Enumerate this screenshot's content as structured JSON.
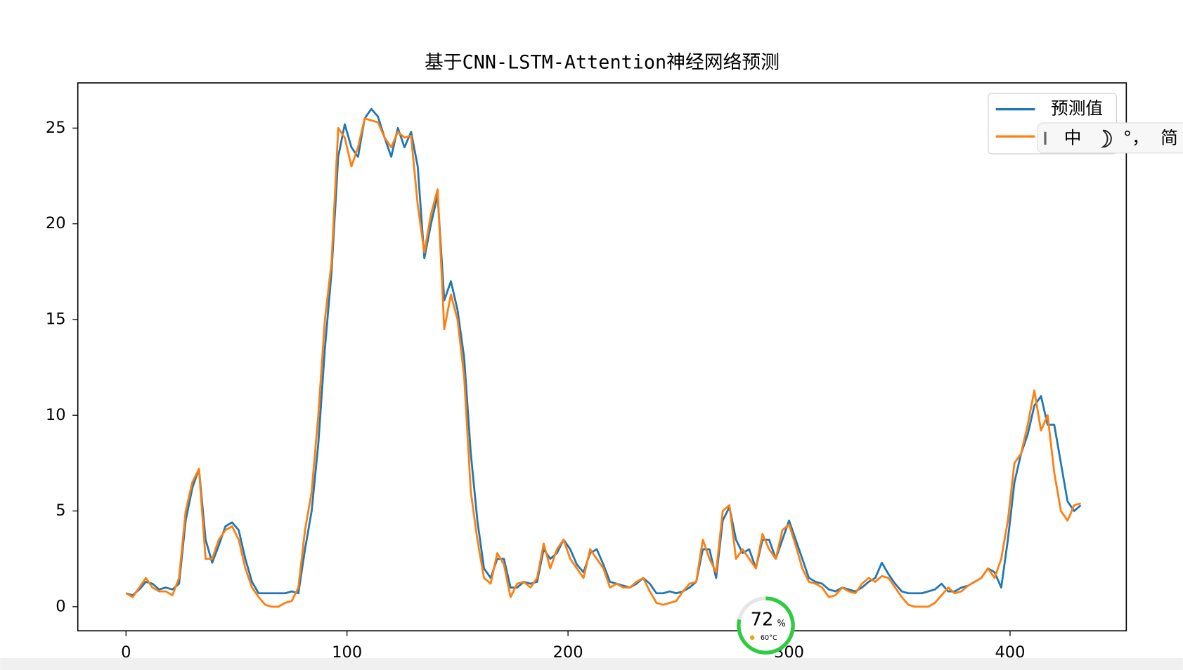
{
  "chart_data": {
    "type": "line",
    "title": "基于CNN-LSTM-Attention神经网络预测",
    "x": [
      0,
      3,
      6,
      9,
      12,
      15,
      18,
      21,
      24,
      27,
      30,
      33,
      36,
      39,
      42,
      45,
      48,
      51,
      54,
      57,
      60,
      63,
      66,
      69,
      72,
      75,
      78,
      81,
      84,
      87,
      90,
      93,
      96,
      99,
      102,
      105,
      108,
      111,
      114,
      117,
      120,
      123,
      126,
      129,
      132,
      135,
      138,
      141,
      144,
      147,
      150,
      153,
      156,
      159,
      162,
      165,
      168,
      171,
      174,
      177,
      180,
      183,
      186,
      189,
      192,
      195,
      198,
      201,
      204,
      207,
      210,
      213,
      216,
      219,
      222,
      225,
      228,
      231,
      234,
      237,
      240,
      243,
      246,
      249,
      252,
      255,
      258,
      261,
      264,
      267,
      270,
      273,
      276,
      279,
      282,
      285,
      288,
      291,
      294,
      297,
      300,
      303,
      306,
      309,
      312,
      315,
      318,
      321,
      324,
      327,
      330,
      333,
      336,
      339,
      342,
      345,
      348,
      351,
      354,
      357,
      360,
      363,
      366,
      369,
      372,
      375,
      378,
      381,
      384,
      387,
      390,
      393,
      396,
      399,
      402,
      405,
      408,
      411,
      414,
      417,
      420,
      423,
      426,
      429,
      432
    ],
    "series": [
      {
        "name": "预测值",
        "color": "#1f77b4",
        "values": [
          0.7,
          0.6,
          0.9,
          1.3,
          1.2,
          0.9,
          1.0,
          0.9,
          1.2,
          4.5,
          6.2,
          7.2,
          3.5,
          2.3,
          3.2,
          4.2,
          4.4,
          4.0,
          2.5,
          1.3,
          0.7,
          0.7,
          0.7,
          0.7,
          0.7,
          0.8,
          0.7,
          3.0,
          5.0,
          8.5,
          13.5,
          17.5,
          23.5,
          25.2,
          24.0,
          23.5,
          25.5,
          26.0,
          25.6,
          24.5,
          23.5,
          25.0,
          24.0,
          24.8,
          23.0,
          18.2,
          20.0,
          21.5,
          16.0,
          17.0,
          15.5,
          13.0,
          8.0,
          4.5,
          2.0,
          1.5,
          2.5,
          2.5,
          1.0,
          1.0,
          1.3,
          1.2,
          1.3,
          3.0,
          2.5,
          2.8,
          3.5,
          3.0,
          2.2,
          1.8,
          2.8,
          3.0,
          2.2,
          1.3,
          1.2,
          1.1,
          1.0,
          1.2,
          1.5,
          1.2,
          0.7,
          0.7,
          0.8,
          0.7,
          0.8,
          1.0,
          1.3,
          3.0,
          3.0,
          1.5,
          4.5,
          5.2,
          3.5,
          2.8,
          3.0,
          2.0,
          3.5,
          3.5,
          2.5,
          3.5,
          4.5,
          3.5,
          2.5,
          1.5,
          1.3,
          1.2,
          0.9,
          0.8,
          1.0,
          0.9,
          0.8,
          1.0,
          1.3,
          1.5,
          2.3,
          1.7,
          1.2,
          0.8,
          0.7,
          0.7,
          0.7,
          0.8,
          0.9,
          1.2,
          0.8,
          0.8,
          1.0,
          1.1,
          1.3,
          1.5,
          2.0,
          1.8,
          1.0,
          3.5,
          6.5,
          8.0,
          9.0,
          10.5,
          11.0,
          9.5,
          9.5,
          7.5,
          5.5,
          5.0,
          5.3
        ]
      },
      {
        "color": "#ff7f0e",
        "values": [
          0.7,
          0.5,
          1.0,
          1.5,
          1.0,
          0.8,
          0.8,
          0.6,
          1.5,
          5.0,
          6.5,
          7.2,
          2.5,
          2.5,
          3.5,
          4.0,
          4.2,
          3.5,
          2.0,
          1.0,
          0.5,
          0.1,
          0.0,
          0.0,
          0.2,
          0.3,
          1.0,
          4.0,
          6.0,
          10.0,
          15,
          18,
          25,
          24.5,
          23,
          24,
          25.5,
          25.4,
          25.3,
          24.5,
          24,
          24.8,
          24.5,
          24.6,
          21,
          18.5,
          20.5,
          21.8,
          14.5,
          16.3,
          15,
          12,
          6,
          3.5,
          1.5,
          1.2,
          2.8,
          2.2,
          0.5,
          1.2,
          1.3,
          1.0,
          1.5,
          3.3,
          2.0,
          3.0,
          3.5,
          2.5,
          2.0,
          1.5,
          3.0,
          2.5,
          2.0,
          1.0,
          1.2,
          1.0,
          1.0,
          1.3,
          1.5,
          0.8,
          0.2,
          0.1,
          0.2,
          0.3,
          0.8,
          1.2,
          1.3,
          3.5,
          2.5,
          1.8,
          5.0,
          5.3,
          2.5,
          3.0,
          2.5,
          2.0,
          3.8,
          3.0,
          2.5,
          4.0,
          4.3,
          3.2,
          2.0,
          1.3,
          1.2,
          1.0,
          0.5,
          0.6,
          1.0,
          0.8,
          0.7,
          1.2,
          1.5,
          1.3,
          1.6,
          1.5,
          1.0,
          0.5,
          0.1,
          0.0,
          0.0,
          0.0,
          0.2,
          0.6,
          1.0,
          0.7,
          0.8,
          1.1,
          1.3,
          1.5,
          2.0,
          1.5,
          2.5,
          4.5,
          7.5,
          8.0,
          9.5,
          11.3,
          9.2,
          10.0,
          7.0,
          5.0,
          4.5,
          5.3,
          5.4
        ]
      }
    ],
    "xlim": [
      -21.8,
      452.6
    ],
    "ylim": [
      -1.26,
      27.36
    ],
    "xticks": [
      0,
      100,
      200,
      300,
      400
    ],
    "yticks": [
      0,
      5,
      10,
      15,
      20,
      25
    ],
    "legend": "upper right"
  },
  "overlays": {
    "ime": [
      "中",
      "°，",
      "简"
    ],
    "gauge": {
      "percent": "72",
      "unit": "%",
      "temp": "60°C"
    }
  }
}
